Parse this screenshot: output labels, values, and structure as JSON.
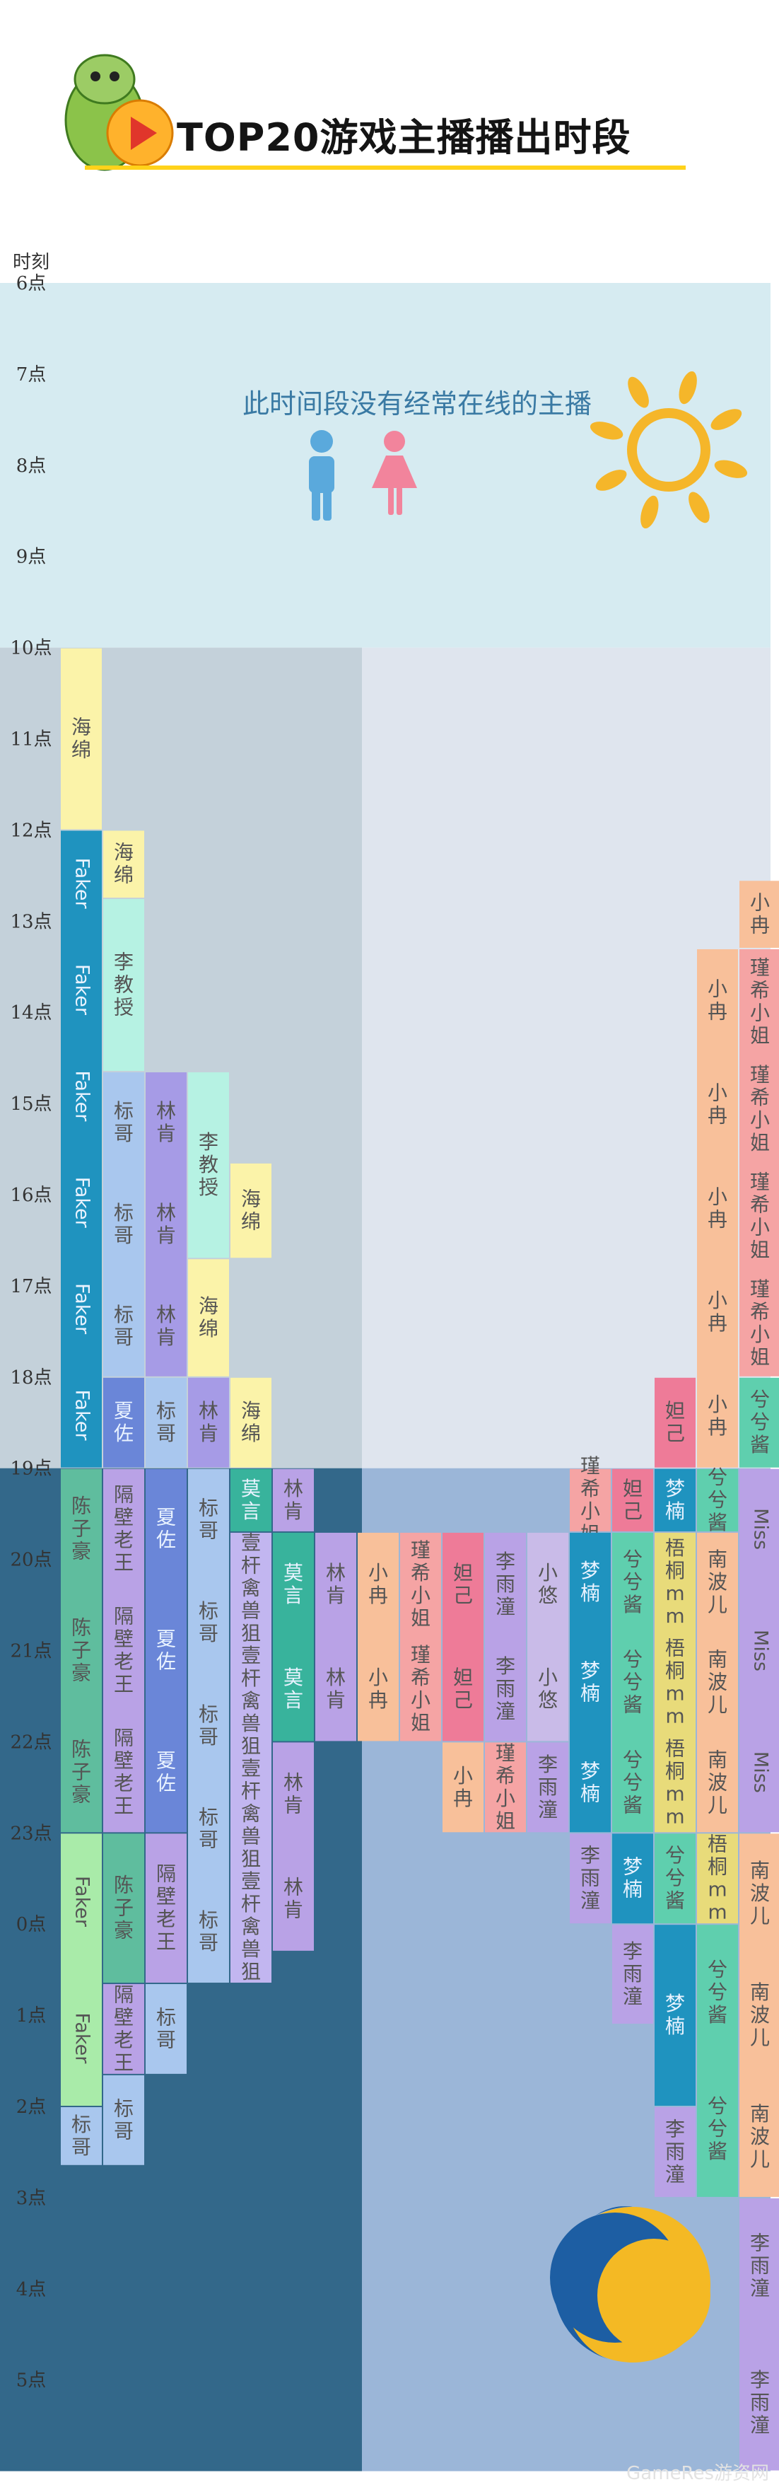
{
  "header": {
    "title": "TOP20游戏主播播出时段"
  },
  "watermark": "GameRes游资网",
  "chart_data": {
    "type": "timeline",
    "y_axis_title": "时刻",
    "hours": [
      "6点",
      "7点",
      "8点",
      "9点",
      "10点",
      "11点",
      "12点",
      "13点",
      "14点",
      "15点",
      "16点",
      "17点",
      "18点",
      "19点",
      "20点",
      "21点",
      "22点",
      "23点",
      "0点",
      "1点",
      "2点",
      "3点",
      "4点",
      "5点"
    ],
    "empty_note": "此时间段没有经常在线的主播",
    "bands": [
      {
        "from": "6点",
        "to": "10点",
        "label": "此时间段没有经常在线的主播"
      },
      {
        "from": "10点",
        "to": "19点"
      },
      {
        "from": "19点",
        "to": "6点"
      }
    ],
    "legend": [
      {
        "symbol": "male",
        "color": "#5aa9dc"
      },
      {
        "symbol": "female",
        "color": "#f2849c"
      }
    ],
    "decorations": [
      "mascot-logo",
      "sun",
      "moon"
    ],
    "columns": [
      {
        "segments": [
          {
            "name": "海绵",
            "start": 10,
            "end": 12,
            "color": "#fbf3a9"
          },
          {
            "name": "Faker",
            "start": 12,
            "end": 19,
            "color": "#1f93bf"
          },
          {
            "name": "陈子豪",
            "start": 19,
            "end": 23,
            "color": "#5fbd9e"
          },
          {
            "name": "Faker",
            "start": 23,
            "end": 26,
            "color": "#a9eba9"
          },
          {
            "name": "标哥",
            "start": 26,
            "end": 26.65,
            "color": "#a9c7ee"
          }
        ]
      },
      {
        "segments": [
          {
            "name": "海绵",
            "start": 12,
            "end": 12.75,
            "color": "#fbf3a9"
          },
          {
            "name": "李教授",
            "start": 12.75,
            "end": 14.65,
            "color": "#b6f2e3"
          },
          {
            "name": "标哥",
            "start": 14.65,
            "end": 18,
            "color": "#a9c7ee"
          },
          {
            "name": "夏佐",
            "start": 18,
            "end": 19,
            "color": "#6a86d8"
          },
          {
            "name": "隔壁老王",
            "start": 19,
            "end": 23,
            "color": "#b9a2e6"
          },
          {
            "name": "陈子豪",
            "start": 23,
            "end": 24.65,
            "color": "#5fbd9e"
          },
          {
            "name": "隔壁老王",
            "start": 24.65,
            "end": 25.65,
            "color": "#b9a2e6"
          },
          {
            "name": "标哥",
            "start": 25.65,
            "end": 26.65,
            "color": "#a9c7ee"
          }
        ]
      },
      {
        "segments": [
          {
            "name": "林肯",
            "start": 14.65,
            "end": 18,
            "color": "#a69be6"
          },
          {
            "name": "标哥",
            "start": 18,
            "end": 19,
            "color": "#a9c7ee"
          },
          {
            "name": "夏佐",
            "start": 19,
            "end": 23,
            "color": "#6a86d8"
          },
          {
            "name": "隔壁老王",
            "start": 23,
            "end": 24.65,
            "color": "#b9a2e6"
          },
          {
            "name": "标哥",
            "start": 24.65,
            "end": 25.65,
            "color": "#a9c7ee"
          }
        ]
      },
      {
        "segments": [
          {
            "name": "李教授",
            "start": 14.65,
            "end": 16.7,
            "color": "#b6f2e3"
          },
          {
            "name": "海绵",
            "start": 16.7,
            "end": 18,
            "color": "#fbf3a9"
          },
          {
            "name": "林肯",
            "start": 18,
            "end": 19,
            "color": "#a69be6"
          },
          {
            "name": "标哥",
            "start": 19,
            "end": 24.65,
            "color": "#a9c7ee"
          }
        ]
      },
      {
        "segments": [
          {
            "name": "海绵",
            "start": 15.65,
            "end": 16.7,
            "color": "#fbf3a9"
          },
          {
            "name": "海绵",
            "start": 18,
            "end": 19,
            "color": "#fbf3a9"
          },
          {
            "name": "莫言",
            "start": 19,
            "end": 19.7,
            "color": "#38b39c"
          },
          {
            "name": "壹杆禽兽狙",
            "start": 19.7,
            "end": 24.65,
            "color": "#c2b6f0"
          }
        ]
      },
      {
        "segments": [
          {
            "name": "林肯",
            "start": 19,
            "end": 19.7,
            "color": "#b9a2e6"
          },
          {
            "name": "莫言",
            "start": 19.7,
            "end": 22,
            "color": "#38b39c"
          },
          {
            "name": "林肯",
            "start": 22,
            "end": 24.3,
            "color": "#b9a2e6"
          }
        ]
      },
      {
        "segments": [
          {
            "name": "林肯",
            "start": 19.7,
            "end": 22,
            "color": "#b9a2e6"
          }
        ]
      },
      {
        "segments": [
          {
            "name": "小冉",
            "start": 19.7,
            "end": 22,
            "color": "#f8c09a"
          }
        ]
      },
      {
        "segments": [
          {
            "name": "瑾希小姐",
            "start": 19.7,
            "end": 22,
            "color": "#f5a4a4"
          }
        ]
      },
      {
        "segments": [
          {
            "name": "妲己",
            "start": 19.7,
            "end": 22,
            "color": "#ee7b98"
          },
          {
            "name": "小冉",
            "start": 22,
            "end": 23,
            "color": "#f8c09a"
          }
        ]
      },
      {
        "segments": [
          {
            "name": "李雨潼",
            "start": 19.7,
            "end": 22,
            "color": "#b9a2e6"
          },
          {
            "name": "瑾希小姐",
            "start": 22,
            "end": 23,
            "color": "#f5a4a4"
          }
        ]
      },
      {
        "segments": [
          {
            "name": "小悠",
            "start": 19.7,
            "end": 22,
            "color": "#c9bbe8"
          },
          {
            "name": "李雨潼",
            "start": 22,
            "end": 23,
            "color": "#b9a2e6"
          }
        ]
      },
      {
        "segments": [
          {
            "name": "瑾希小姐",
            "start": 19,
            "end": 19.7,
            "color": "#f5a4a4"
          },
          {
            "name": "梦楠",
            "start": 19.7,
            "end": 23,
            "color": "#1f93bf"
          },
          {
            "name": "李雨潼",
            "start": 23,
            "end": 24,
            "color": "#b9a2e6"
          }
        ]
      },
      {
        "segments": [
          {
            "name": "妲己",
            "start": 19,
            "end": 19.7,
            "color": "#ee7b98"
          },
          {
            "name": "兮兮酱",
            "start": 19.7,
            "end": 23,
            "color": "#5fcfae"
          },
          {
            "name": "梦楠",
            "start": 23,
            "end": 24,
            "color": "#1f93bf"
          },
          {
            "name": "李雨潼",
            "start": 24,
            "end": 25.1,
            "color": "#b9a2e6"
          }
        ]
      },
      {
        "segments": [
          {
            "name": "妲己",
            "start": 18,
            "end": 19,
            "color": "#ee7b98"
          },
          {
            "name": "梦楠",
            "start": 19,
            "end": 19.7,
            "color": "#1f93bf"
          },
          {
            "name": "梧桐mm",
            "start": 19.7,
            "end": 23,
            "color": "#e8db7a"
          },
          {
            "name": "兮兮酱",
            "start": 23,
            "end": 24,
            "color": "#5fcfae"
          },
          {
            "name": "梦楠",
            "start": 24,
            "end": 26,
            "color": "#1f93bf"
          },
          {
            "name": "李雨潼",
            "start": 26,
            "end": 27,
            "color": "#b9a2e6"
          }
        ]
      },
      {
        "segments": [
          {
            "name": "小冉",
            "start": 13.3,
            "end": 19,
            "color": "#f8c09a"
          },
          {
            "name": "兮兮酱",
            "start": 19,
            "end": 19.7,
            "color": "#5fcfae"
          },
          {
            "name": "南波儿",
            "start": 19.7,
            "end": 23,
            "color": "#f8c09a"
          },
          {
            "name": "梧桐mm",
            "start": 23,
            "end": 24,
            "color": "#e8db7a"
          },
          {
            "name": "兮兮酱",
            "start": 24,
            "end": 27,
            "color": "#5fcfae"
          }
        ]
      },
      {
        "segments": [
          {
            "name": "小冉",
            "start": 12.55,
            "end": 13.3,
            "color": "#f8c09a"
          },
          {
            "name": "瑾希小姐",
            "start": 13.3,
            "end": 18,
            "color": "#f5a4a4"
          },
          {
            "name": "兮兮酱",
            "start": 18,
            "end": 19,
            "color": "#5fcfae"
          },
          {
            "name": "Miss",
            "start": 19,
            "end": 23,
            "color": "#b9a2e6"
          },
          {
            "name": "南波儿",
            "start": 23,
            "end": 27,
            "color": "#f8c09a"
          },
          {
            "name": "李雨潼",
            "start": 27,
            "end": 30,
            "color": "#b9a2e6"
          }
        ]
      }
    ]
  }
}
